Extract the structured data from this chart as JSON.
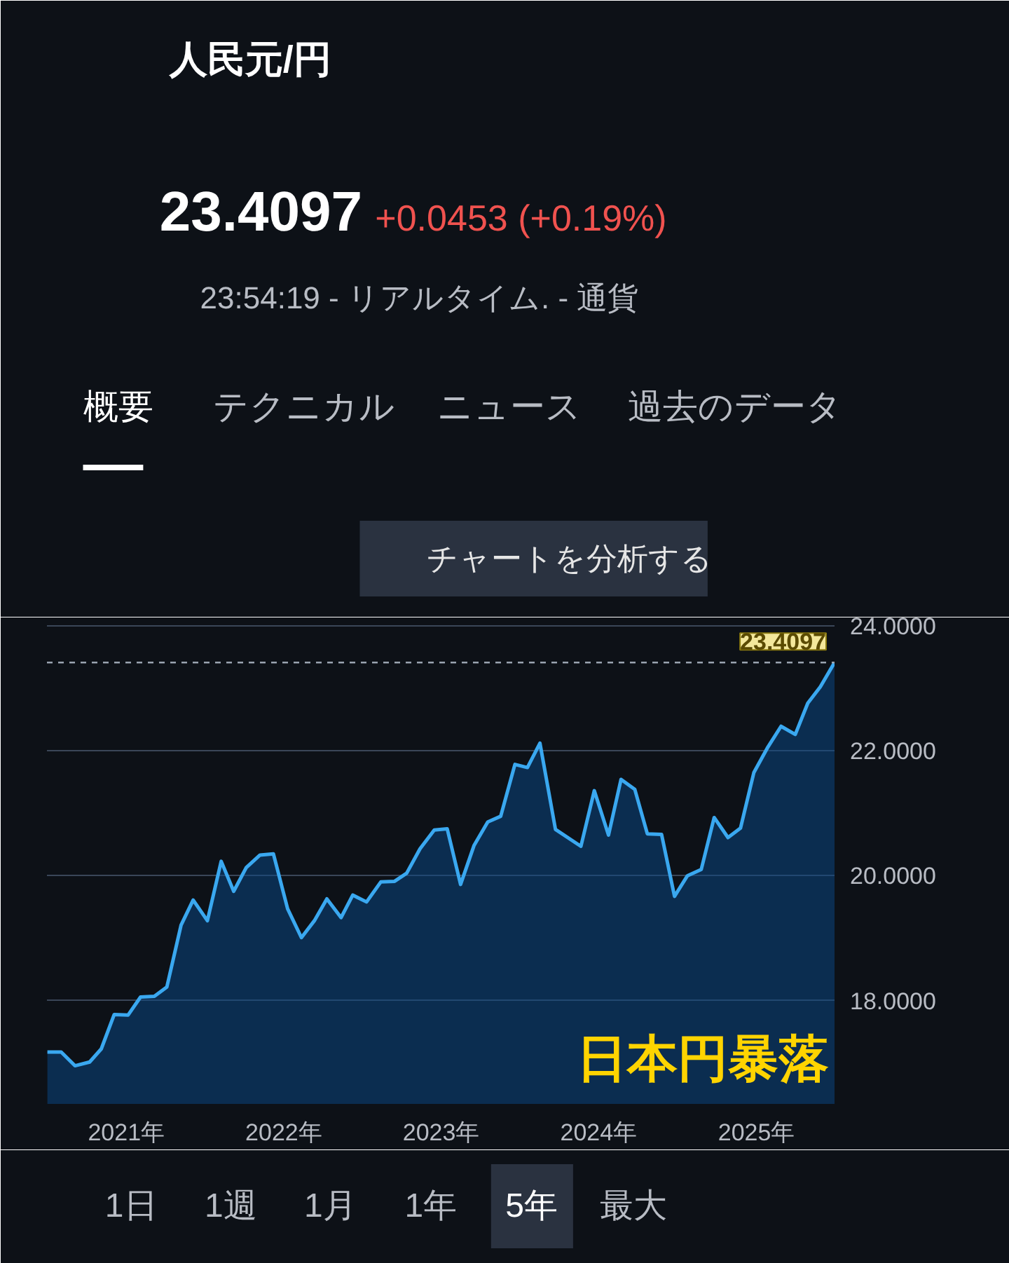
{
  "chart_data": {
    "type": "area",
    "title": "人民元/円",
    "subtitle": "23.4097",
    "annotations": [
      "+0.0453 (+0.19%)",
      "23:54:19 - リアルタイム. - 通貨",
      "概要",
      "テクニカル",
      "ニュース",
      "過去のデータ",
      "チャートを分析する",
      "日本円暴落",
      "1日",
      "1週",
      "1月",
      "1年",
      "5年",
      "最大"
    ],
    "x": [
      "2020-07-02",
      "2020-08-03",
      "2020-09-04",
      "2020-10-08",
      "2020-11-04",
      "2020-12-04",
      "2021-01-05",
      "2021-02-03",
      "2021-03-07",
      "2021-04-05",
      "2021-05-08",
      "2021-06-05",
      "2021-07-08",
      "2021-08-09",
      "2021-09-07",
      "2021-10-06",
      "2021-11-07",
      "2021-12-08",
      "2022-01-10",
      "2022-02-11",
      "2022-03-13",
      "2022-04-11",
      "2022-05-14",
      "2022-06-10",
      "2022-07-12",
      "2022-08-14",
      "2022-09-15",
      "2022-10-13",
      "2022-11-13",
      "2022-12-16",
      "2023-01-15",
      "2023-02-15",
      "2023-03-18",
      "2023-04-19",
      "2023-05-19",
      "2023-06-21",
      "2023-07-20",
      "2023-08-18",
      "2023-09-23",
      "2023-11-21",
      "2023-12-22",
      "2024-01-24",
      "2024-02-22",
      "2024-03-25",
      "2024-04-23",
      "2024-05-26",
      "2024-06-25",
      "2024-07-25",
      "2024-08-26",
      "2024-09-25",
      "2024-10-27",
      "2024-11-25",
      "2024-12-26",
      "2025-01-26",
      "2025-02-27",
      "2025-04-01",
      "2025-04-30",
      "2025-05-29",
      "2025-07-01"
    ],
    "series": [
      {
        "color": "#3aa8f0",
        "values": [
          17.18,
          17.18,
          16.96,
          17.02,
          17.23,
          17.78,
          17.77,
          18.06,
          18.07,
          18.22,
          19.21,
          19.61,
          19.28,
          20.23,
          19.75,
          20.13,
          20.33,
          20.35,
          19.47,
          19.01,
          19.28,
          19.63,
          19.33,
          19.69,
          19.58,
          19.9,
          19.91,
          20.04,
          20.43,
          20.73,
          20.75,
          19.86,
          20.48,
          20.86,
          20.95,
          21.78,
          21.73,
          22.12,
          20.74,
          20.47,
          21.36,
          20.65,
          21.54,
          21.38,
          20.67,
          20.66,
          19.67,
          20.0,
          20.1,
          20.93,
          20.61,
          20.76,
          21.65,
          22.04,
          22.39,
          22.26,
          22.76,
          23.02,
          23.4097
        ]
      }
    ],
    "xlim": [
      "2020-07-01",
      "2025-07-01"
    ],
    "xticks": [
      {
        "value": "2021-01-01",
        "label": "2021年"
      },
      {
        "value": "2022-01-01",
        "label": "2022年"
      },
      {
        "value": "2023-01-01",
        "label": "2023年"
      },
      {
        "value": "2024-01-01",
        "label": "2024年"
      },
      {
        "value": "2025-01-01",
        "label": "2025年"
      }
    ],
    "ylim": [
      16.35,
      24.13
    ],
    "yticks": [
      {
        "value": 18,
        "label": "18.0000"
      },
      {
        "value": 20,
        "label": "20.0000"
      },
      {
        "value": 22,
        "label": "22.0000"
      },
      {
        "value": 24,
        "label": "24.0000"
      }
    ],
    "ref_lines": [
      {
        "axis": "y",
        "value": 23.4097,
        "label": "23.4097",
        "line_style": "dashed"
      }
    ],
    "grid": "y"
  }
}
